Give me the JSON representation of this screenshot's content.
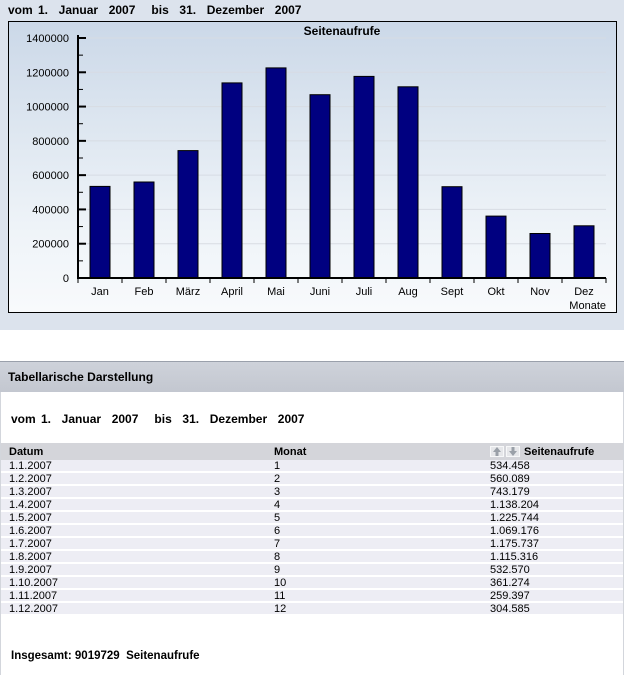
{
  "page": {
    "top_date_range": "vom 1.  Januar  2007   bis  31.  Dezember  2007"
  },
  "chart_data": {
    "type": "bar",
    "title": "Seitenaufrufe",
    "xlabel": "Monate",
    "ylabel": "",
    "categories": [
      "Jan",
      "Feb",
      "März",
      "April",
      "Mai",
      "Juni",
      "Juli",
      "Aug",
      "Sept",
      "Okt",
      "Nov",
      "Dez"
    ],
    "values": [
      534458,
      560089,
      743179,
      1138204,
      1225744,
      1069176,
      1175737,
      1115316,
      532570,
      361274,
      259397,
      304585
    ],
    "ylim": [
      0,
      1400000
    ],
    "ytick_step": 200000,
    "yticks": [
      0,
      200000,
      400000,
      600000,
      800000,
      1000000,
      1200000,
      1400000
    ],
    "bar_color": "#000080",
    "grid": true,
    "legend": "none"
  },
  "table_section": {
    "title": "Tabellarische Darstellung",
    "date_range": "vom 1.  Januar  2007   bis  31.  Dezember  2007",
    "columns": {
      "datum": "Datum",
      "monat": "Monat",
      "seitenaufrufe": "Seitenaufrufe"
    },
    "sort_icons": [
      "sort-up-icon",
      "sort-down-icon"
    ],
    "rows": [
      {
        "datum": "1.1.2007",
        "monat": "1",
        "seitenaufrufe": "534.458"
      },
      {
        "datum": "1.2.2007",
        "monat": "2",
        "seitenaufrufe": "560.089"
      },
      {
        "datum": "1.3.2007",
        "monat": "3",
        "seitenaufrufe": "743.179"
      },
      {
        "datum": "1.4.2007",
        "monat": "4",
        "seitenaufrufe": "1.138.204"
      },
      {
        "datum": "1.5.2007",
        "monat": "5",
        "seitenaufrufe": "1.225.744"
      },
      {
        "datum": "1.6.2007",
        "monat": "6",
        "seitenaufrufe": "1.069.176"
      },
      {
        "datum": "1.7.2007",
        "monat": "7",
        "seitenaufrufe": "1.175.737"
      },
      {
        "datum": "1.8.2007",
        "monat": "8",
        "seitenaufrufe": "1.115.316"
      },
      {
        "datum": "1.9.2007",
        "monat": "9",
        "seitenaufrufe": "532.570"
      },
      {
        "datum": "1.10.2007",
        "monat": "10",
        "seitenaufrufe": "361.274"
      },
      {
        "datum": "1.11.2007",
        "monat": "11",
        "seitenaufrufe": "259.397"
      },
      {
        "datum": "1.12.2007",
        "monat": "12",
        "seitenaufrufe": "304.585"
      }
    ],
    "total": "Insgesamt: 9019729  Seitenaufrufe"
  },
  "colors": {
    "top_background": "#dce3ed",
    "chart_gradient_top": "#cbd8e8",
    "chart_gradient_bottom": "#f8fafc",
    "bar": "#000080",
    "gridline": "#d7dce3",
    "section_bar_bg": "#c6cad3",
    "table_header_bg": "#d4d5da",
    "row_bg": "#ededf4"
  }
}
